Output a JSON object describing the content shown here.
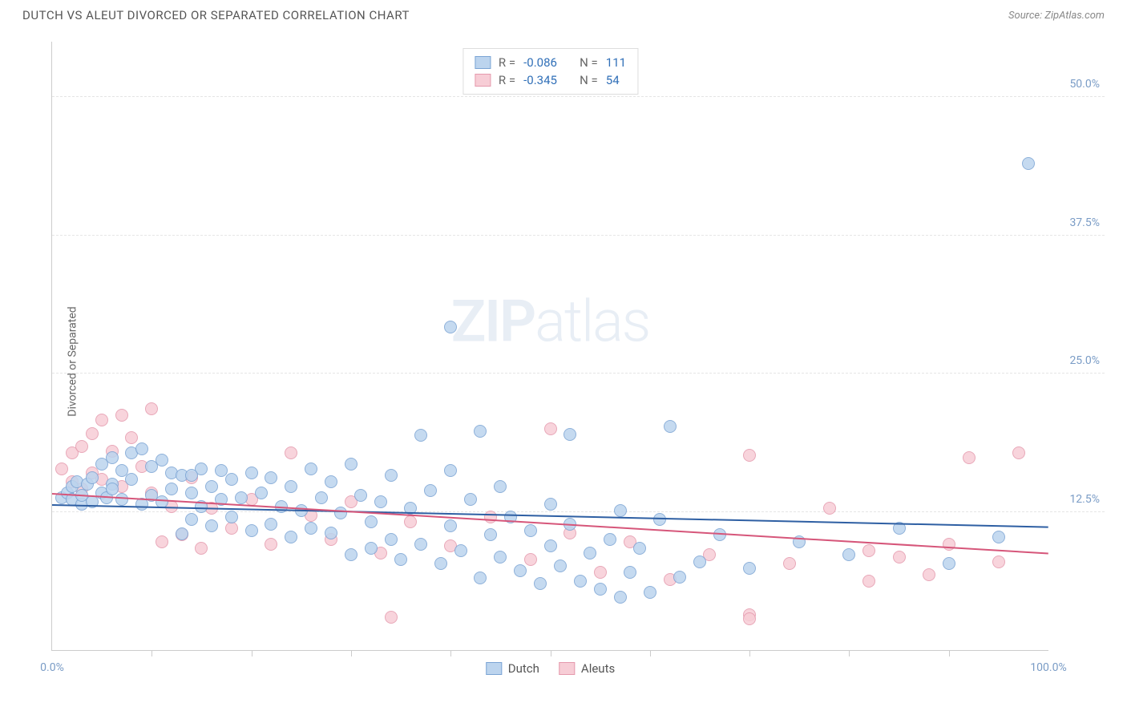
{
  "title": "DUTCH VS ALEUT DIVORCED OR SEPARATED CORRELATION CHART",
  "source": "Source: ZipAtlas.com",
  "watermark": {
    "bold": "ZIP",
    "light": "atlas"
  },
  "ylabel": "Divorced or Separated",
  "chart": {
    "type": "scatter",
    "xlim": [
      0,
      100
    ],
    "ylim": [
      0,
      55
    ],
    "background_color": "#ffffff",
    "grid_color": "#e5e5e5",
    "yticks": [
      {
        "v": 12.5,
        "label": "12.5%",
        "color": "#7a9cc6"
      },
      {
        "v": 25.0,
        "label": "25.0%",
        "color": "#7a9cc6"
      },
      {
        "v": 37.5,
        "label": "37.5%",
        "color": "#7a9cc6"
      },
      {
        "v": 50.0,
        "label": "50.0%",
        "color": "#7a9cc6"
      }
    ],
    "xticks": [
      10,
      20,
      30,
      40,
      50,
      60,
      70,
      80,
      90
    ],
    "xlabels": [
      {
        "v": 0,
        "label": "0.0%",
        "color": "#7a9cc6"
      },
      {
        "v": 100,
        "label": "100.0%",
        "color": "#7a9cc6"
      }
    ],
    "marker_radius": 8,
    "marker_border_width": 1.2,
    "trend_width": 2,
    "series": [
      {
        "name": "Dutch",
        "fill": "#bcd4ee",
        "stroke": "#7ba4d4",
        "trend_color": "#2e5fa3",
        "R": "-0.086",
        "N": "111",
        "trend": {
          "x1": 0,
          "y1": 13.2,
          "x2": 100,
          "y2": 11.2
        },
        "points": [
          [
            1,
            13.8
          ],
          [
            1.5,
            14.2
          ],
          [
            2,
            13.6
          ],
          [
            2,
            14.8
          ],
          [
            2.5,
            15.2
          ],
          [
            3,
            13.2
          ],
          [
            3,
            14.0
          ],
          [
            3.5,
            15.0
          ],
          [
            4,
            13.4
          ],
          [
            4,
            15.6
          ],
          [
            5,
            16.8
          ],
          [
            5,
            14.2
          ],
          [
            5.5,
            13.8
          ],
          [
            6,
            17.4
          ],
          [
            6,
            15.0
          ],
          [
            7,
            13.6
          ],
          [
            7,
            16.2
          ],
          [
            8,
            17.8
          ],
          [
            8,
            15.4
          ],
          [
            9,
            13.2
          ],
          [
            9,
            18.2
          ],
          [
            10,
            14.0
          ],
          [
            10,
            16.6
          ],
          [
            11,
            13.4
          ],
          [
            11,
            17.2
          ],
          [
            12,
            14.6
          ],
          [
            12,
            16.0
          ],
          [
            13,
            15.8
          ],
          [
            13,
            10.5
          ],
          [
            14,
            14.2
          ],
          [
            14,
            11.8
          ],
          [
            15,
            13.0
          ],
          [
            15,
            16.4
          ],
          [
            16,
            11.2
          ],
          [
            16,
            14.8
          ],
          [
            17,
            13.6
          ],
          [
            17,
            16.2
          ],
          [
            18,
            12.0
          ],
          [
            18,
            15.4
          ],
          [
            19,
            13.8
          ],
          [
            20,
            10.8
          ],
          [
            20,
            16.0
          ],
          [
            21,
            14.2
          ],
          [
            22,
            11.4
          ],
          [
            22,
            15.6
          ],
          [
            23,
            13.0
          ],
          [
            24,
            10.2
          ],
          [
            24,
            14.8
          ],
          [
            25,
            12.6
          ],
          [
            26,
            16.4
          ],
          [
            26,
            11.0
          ],
          [
            27,
            13.8
          ],
          [
            28,
            10.6
          ],
          [
            28,
            15.2
          ],
          [
            29,
            12.4
          ],
          [
            30,
            16.8
          ],
          [
            30,
            8.6
          ],
          [
            31,
            14.0
          ],
          [
            32,
            11.6
          ],
          [
            32,
            9.2
          ],
          [
            33,
            13.4
          ],
          [
            34,
            10.0
          ],
          [
            34,
            15.8
          ],
          [
            35,
            8.2
          ],
          [
            36,
            12.8
          ],
          [
            37,
            19.4
          ],
          [
            37,
            9.6
          ],
          [
            38,
            14.4
          ],
          [
            39,
            7.8
          ],
          [
            40,
            11.2
          ],
          [
            40,
            16.2
          ],
          [
            41,
            9.0
          ],
          [
            42,
            13.6
          ],
          [
            43,
            6.5
          ],
          [
            43,
            19.8
          ],
          [
            44,
            10.4
          ],
          [
            45,
            8.4
          ],
          [
            45,
            14.8
          ],
          [
            46,
            12.0
          ],
          [
            47,
            7.2
          ],
          [
            48,
            10.8
          ],
          [
            49,
            6.0
          ],
          [
            50,
            9.4
          ],
          [
            50,
            13.2
          ],
          [
            51,
            7.6
          ],
          [
            52,
            19.5
          ],
          [
            52,
            11.4
          ],
          [
            53,
            6.2
          ],
          [
            54,
            8.8
          ],
          [
            55,
            5.5
          ],
          [
            56,
            10.0
          ],
          [
            57,
            4.8
          ],
          [
            57,
            12.6
          ],
          [
            58,
            7.0
          ],
          [
            59,
            9.2
          ],
          [
            60,
            5.2
          ],
          [
            61,
            11.8
          ],
          [
            62,
            20.2
          ],
          [
            63,
            6.6
          ],
          [
            65,
            8.0
          ],
          [
            67,
            10.4
          ],
          [
            70,
            7.4
          ],
          [
            75,
            9.8
          ],
          [
            80,
            8.6
          ],
          [
            85,
            11.0
          ],
          [
            90,
            7.8
          ],
          [
            95,
            10.2
          ],
          [
            98,
            44.0
          ],
          [
            40,
            29.2
          ],
          [
            14,
            15.8
          ],
          [
            6,
            14.6
          ]
        ]
      },
      {
        "name": "Aleuts",
        "fill": "#f7cdd6",
        "stroke": "#e59aad",
        "trend_color": "#d6567a",
        "R": "-0.345",
        "N": "54",
        "trend": {
          "x1": 0,
          "y1": 14.2,
          "x2": 100,
          "y2": 8.8
        },
        "points": [
          [
            1,
            16.4
          ],
          [
            2,
            15.2
          ],
          [
            2,
            17.8
          ],
          [
            3,
            14.6
          ],
          [
            3,
            18.4
          ],
          [
            4,
            16.0
          ],
          [
            4,
            19.6
          ],
          [
            5,
            15.4
          ],
          [
            5,
            20.8
          ],
          [
            6,
            18.0
          ],
          [
            7,
            21.2
          ],
          [
            7,
            14.8
          ],
          [
            8,
            19.2
          ],
          [
            9,
            16.6
          ],
          [
            10,
            21.8
          ],
          [
            10,
            14.2
          ],
          [
            11,
            9.8
          ],
          [
            12,
            13.0
          ],
          [
            13,
            10.4
          ],
          [
            14,
            15.6
          ],
          [
            15,
            9.2
          ],
          [
            16,
            12.8
          ],
          [
            18,
            11.0
          ],
          [
            20,
            13.6
          ],
          [
            22,
            9.6
          ],
          [
            24,
            17.8
          ],
          [
            26,
            12.2
          ],
          [
            28,
            10.0
          ],
          [
            30,
            13.4
          ],
          [
            33,
            8.8
          ],
          [
            36,
            11.6
          ],
          [
            40,
            9.4
          ],
          [
            44,
            12.0
          ],
          [
            48,
            8.2
          ],
          [
            50,
            20.0
          ],
          [
            52,
            10.6
          ],
          [
            55,
            7.0
          ],
          [
            58,
            9.8
          ],
          [
            62,
            6.4
          ],
          [
            66,
            8.6
          ],
          [
            70,
            17.6
          ],
          [
            70,
            3.2
          ],
          [
            74,
            7.8
          ],
          [
            78,
            12.8
          ],
          [
            82,
            9.0
          ],
          [
            82,
            6.2
          ],
          [
            85,
            8.4
          ],
          [
            88,
            6.8
          ],
          [
            90,
            9.6
          ],
          [
            92,
            17.4
          ],
          [
            95,
            8.0
          ],
          [
            97,
            17.8
          ],
          [
            70,
            2.8
          ],
          [
            34,
            3.0
          ]
        ]
      }
    ]
  },
  "legend_top": {
    "stat_labels": {
      "R": "R =",
      "N": "N ="
    },
    "value_color": "#3170b8",
    "text_color": "#666"
  },
  "legend_bottom": [
    {
      "label": "Dutch",
      "fill": "#bcd4ee",
      "stroke": "#7ba4d4"
    },
    {
      "label": "Aleuts",
      "fill": "#f7cdd6",
      "stroke": "#e59aad"
    }
  ]
}
